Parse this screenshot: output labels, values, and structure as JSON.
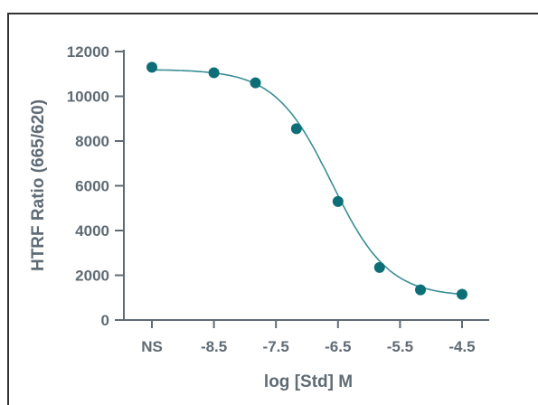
{
  "chart_data": {
    "type": "scatter",
    "xlabel": "log [Std] M",
    "ylabel": "HTRF Ratio (665/620)",
    "x_tick_labels": [
      "NS",
      "-8.5",
      "-7.5",
      "-6.5",
      "-5.5",
      "-4.5"
    ],
    "y_tick_labels": [
      "0",
      "2000",
      "4000",
      "6000",
      "8000",
      "10000",
      "12000"
    ],
    "y_ticks": [
      0,
      2000,
      4000,
      6000,
      8000,
      10000,
      12000
    ],
    "ylim": [
      0,
      12000
    ],
    "grid": false,
    "legend": "none",
    "points": [
      {
        "x": "NS",
        "y": 11300
      },
      {
        "x": -8.5,
        "y": 11050
      },
      {
        "x": -7.83,
        "y": 10600
      },
      {
        "x": -7.17,
        "y": 8550
      },
      {
        "x": -6.5,
        "y": 5300
      },
      {
        "x": -5.83,
        "y": 2350
      },
      {
        "x": -5.17,
        "y": 1350
      },
      {
        "x": -4.5,
        "y": 1150
      }
    ],
    "fit_curve": {
      "model": "4PL",
      "top": 11200,
      "bottom": 1050,
      "log_ic50": -6.6,
      "hill": 0.95
    },
    "colors": {
      "series": "#0e6e78",
      "fit": "#3a8e95",
      "axis": "#5f6b75"
    }
  }
}
